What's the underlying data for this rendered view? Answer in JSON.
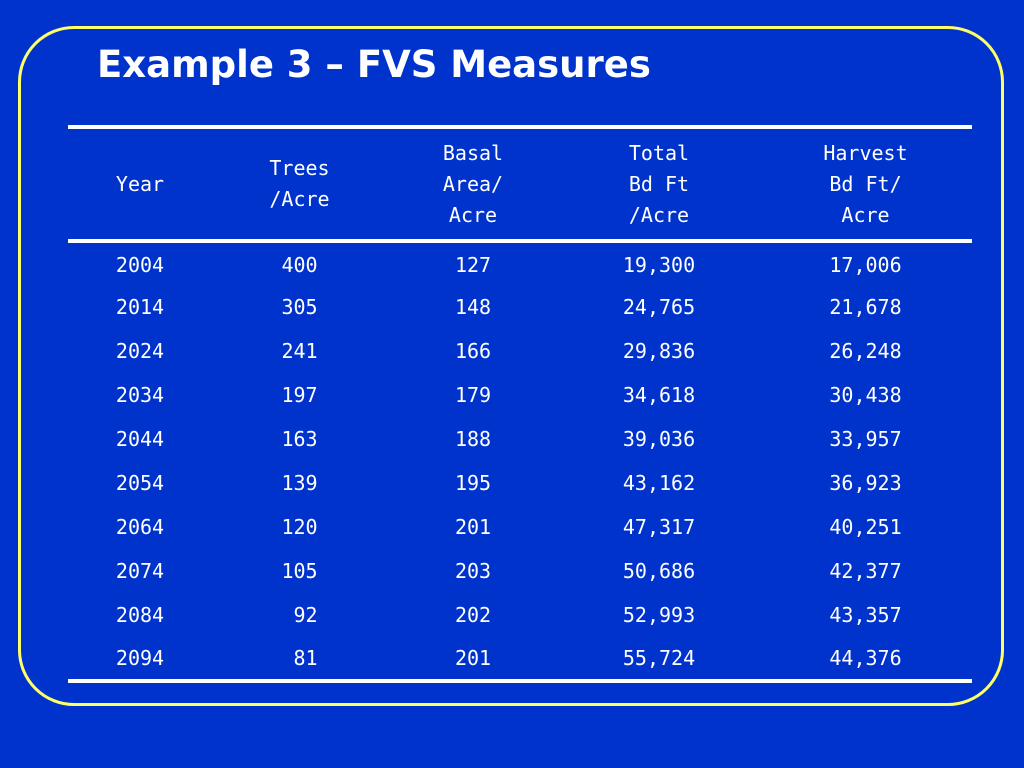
{
  "slide": {
    "title": "Example 3 – FVS Measures"
  },
  "table": {
    "headers": [
      [
        "Year"
      ],
      [
        "Trees",
        "/Acre"
      ],
      [
        "Basal",
        "Area/",
        "Acre"
      ],
      [
        "Total",
        "Bd Ft",
        "/Acre"
      ],
      [
        "Harvest",
        "Bd Ft/",
        "Acre"
      ]
    ],
    "rows": [
      [
        "2004",
        "400",
        "127",
        "19,300",
        "17,006"
      ],
      [
        "2014",
        "305",
        "148",
        "24,765",
        "21,678"
      ],
      [
        "2024",
        "241",
        "166",
        "29,836",
        "26,248"
      ],
      [
        "2034",
        "197",
        "179",
        "34,618",
        "30,438"
      ],
      [
        "2044",
        "163",
        "188",
        "39,036",
        "33,957"
      ],
      [
        "2054",
        "139",
        "195",
        "43,162",
        "36,923"
      ],
      [
        "2064",
        "120",
        "201",
        "47,317",
        "40,251"
      ],
      [
        "2074",
        "105",
        "203",
        "50,686",
        "42,377"
      ],
      [
        "2084",
        " 92",
        "202",
        "52,993",
        "43,357"
      ],
      [
        "2094",
        " 81",
        "201",
        "55,724",
        "44,376"
      ]
    ]
  },
  "colors": {
    "background": "#0033cc",
    "frame_border": "#ffff66",
    "text": "#ffffff"
  }
}
